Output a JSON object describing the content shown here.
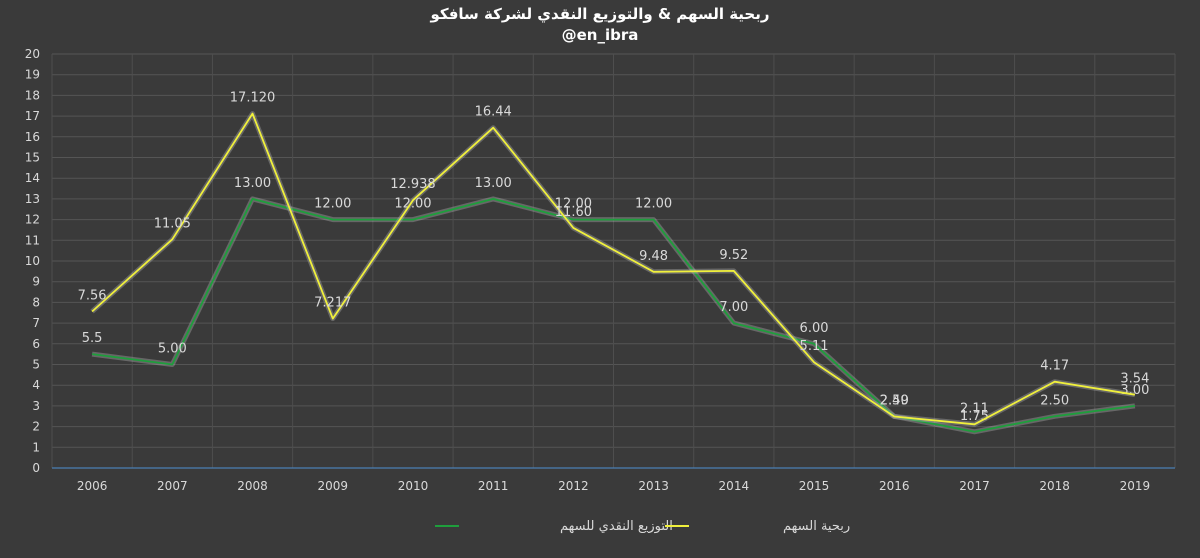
{
  "chart_data": {
    "type": "line",
    "title": "ربحية السهم & والتوزيع النقدي لشركة سافكو",
    "subtitle": "@en_ibra",
    "xlabel": "",
    "ylabel": "",
    "categories": [
      "2006",
      "2007",
      "2008",
      "2009",
      "2010",
      "2011",
      "2012",
      "2013",
      "2014",
      "2015",
      "2016",
      "2017",
      "2018",
      "2019"
    ],
    "ylim": [
      0,
      20
    ],
    "yticks": [
      0,
      1,
      2,
      3,
      4,
      5,
      6,
      7,
      8,
      9,
      10,
      11,
      12,
      13,
      14,
      15,
      16,
      17,
      18,
      19,
      20
    ],
    "grid": true,
    "legend_position": "bottom",
    "series": [
      {
        "name": "التوزيع النقدي للسهم",
        "color": "#1e9e3c",
        "values": [
          5.5,
          5.0,
          13.0,
          12.0,
          12.0,
          13.0,
          12.0,
          12.0,
          7.0,
          6.0,
          2.5,
          1.75,
          2.5,
          3.0
        ],
        "labels": [
          "5.5",
          "5.00",
          "13.00",
          "12.00",
          "12.00",
          "13.00",
          "12.00",
          "12.00",
          "7.00",
          "6.00",
          "2.50",
          "1.75",
          "2.50",
          "3.00"
        ]
      },
      {
        "name": "ربحية السهم",
        "color": "#f0f03c",
        "values": [
          7.56,
          11.05,
          17.12,
          7.217,
          12.938,
          16.44,
          11.6,
          9.48,
          9.52,
          5.11,
          2.49,
          2.11,
          4.17,
          3.54
        ],
        "labels": [
          "7.56",
          "11.05",
          "17.120",
          "7.217",
          "12.938",
          "16.44",
          "11.60",
          "9.48",
          "9.52",
          "5.11",
          "2.49",
          "2.11",
          "4.17",
          "3.54"
        ]
      }
    ]
  }
}
